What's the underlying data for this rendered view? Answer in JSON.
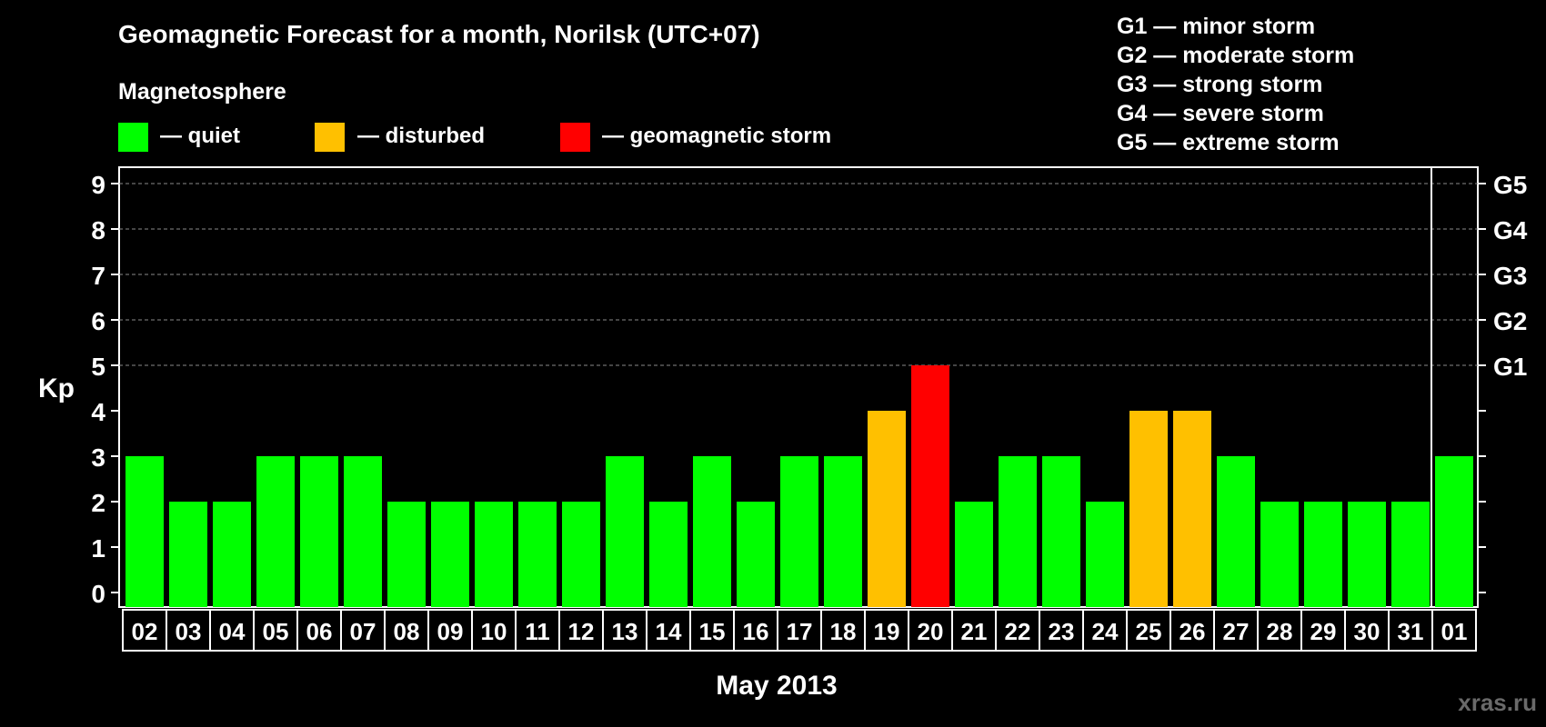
{
  "chart_data": {
    "type": "bar",
    "title": "Geomagnetic Forecast for a month, Norilsk (UTC+07)",
    "legend_title": "Magnetosphere",
    "legend": [
      {
        "label": "— quiet",
        "color": "#00ff00"
      },
      {
        "label": "— disturbed",
        "color": "#ffc000"
      },
      {
        "label": "— geomagnetic storm",
        "color": "#ff0000"
      }
    ],
    "storm_scale": [
      "G1 — minor storm",
      "G2 — moderate storm",
      "G3 — strong storm",
      "G4 — severe storm",
      "G5 — extreme storm"
    ],
    "ylabel": "Kp",
    "ylim": [
      0,
      9
    ],
    "yticks": [
      "0",
      "1",
      "2",
      "3",
      "4",
      "5",
      "6",
      "7",
      "8",
      "9"
    ],
    "right_labels": [
      {
        "kp": 5,
        "label": "G1"
      },
      {
        "kp": 6,
        "label": "G2"
      },
      {
        "kp": 7,
        "label": "G3"
      },
      {
        "kp": 8,
        "label": "G4"
      },
      {
        "kp": 9,
        "label": "G5"
      }
    ],
    "xlabel": "May 2013",
    "categories": [
      "02",
      "03",
      "04",
      "05",
      "06",
      "07",
      "08",
      "09",
      "10",
      "11",
      "12",
      "13",
      "14",
      "15",
      "16",
      "17",
      "18",
      "19",
      "20",
      "21",
      "22",
      "23",
      "24",
      "25",
      "26",
      "27",
      "28",
      "29",
      "30",
      "31",
      "01"
    ],
    "values": [
      3,
      2,
      2,
      3,
      3,
      3,
      2,
      2,
      2,
      2,
      2,
      3,
      2,
      3,
      2,
      3,
      3,
      4,
      5,
      2,
      3,
      3,
      2,
      4,
      4,
      3,
      2,
      2,
      2,
      2,
      3
    ],
    "month_divider_after": "31",
    "grid": "dashed",
    "colors": {
      "quiet": "#00ff00",
      "disturbed": "#ffc000",
      "storm": "#ff0000"
    }
  },
  "watermark": "xras.ru"
}
